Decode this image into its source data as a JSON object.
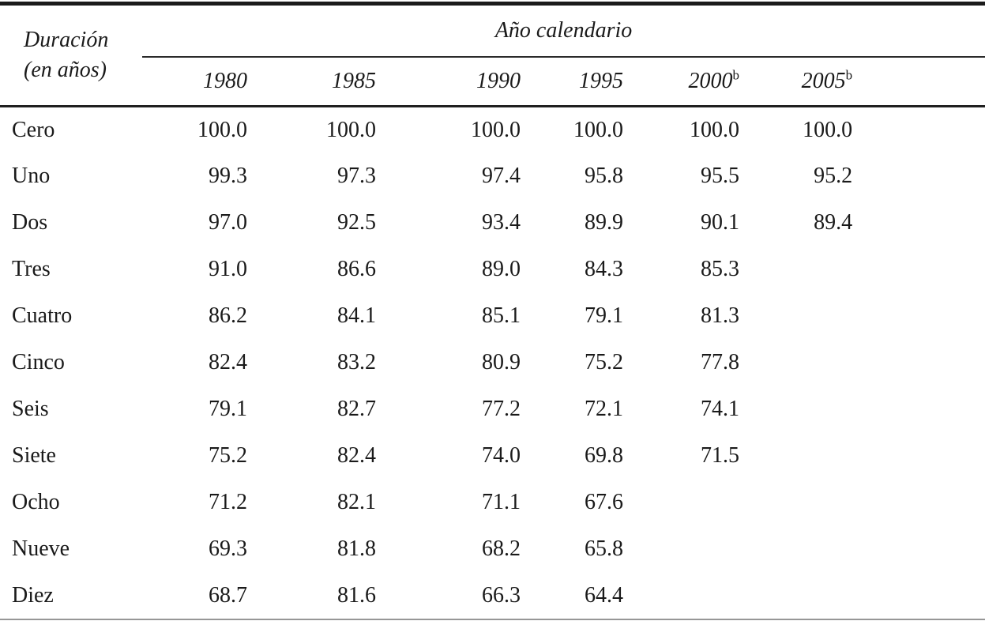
{
  "table": {
    "stub_header": {
      "line1": "Duración",
      "line2": "(en años)"
    },
    "spanner": "Año calendario",
    "years": [
      {
        "label": "1980",
        "sup": ""
      },
      {
        "label": "1985",
        "sup": ""
      },
      {
        "label": "1990",
        "sup": ""
      },
      {
        "label": "1995",
        "sup": ""
      },
      {
        "label": "2000",
        "sup": "b"
      },
      {
        "label": "2005",
        "sup": "b"
      }
    ],
    "rows": [
      {
        "label": "Cero",
        "values": [
          "100.0",
          "100.0",
          "100.0",
          "100.0",
          "100.0",
          "100.0"
        ]
      },
      {
        "label": "Uno",
        "values": [
          "99.3",
          "97.3",
          "97.4",
          "95.8",
          "95.5",
          "95.2"
        ]
      },
      {
        "label": "Dos",
        "values": [
          "97.0",
          "92.5",
          "93.4",
          "89.9",
          "90.1",
          "89.4"
        ]
      },
      {
        "label": "Tres",
        "values": [
          "91.0",
          "86.6",
          "89.0",
          "84.3",
          "85.3",
          ""
        ]
      },
      {
        "label": "Cuatro",
        "values": [
          "86.2",
          "84.1",
          "85.1",
          "79.1",
          "81.3",
          ""
        ]
      },
      {
        "label": "Cinco",
        "values": [
          "82.4",
          "83.2",
          "80.9",
          "75.2",
          "77.8",
          ""
        ]
      },
      {
        "label": "Seis",
        "values": [
          "79.1",
          "82.7",
          "77.2",
          "72.1",
          "74.1",
          ""
        ]
      },
      {
        "label": "Siete",
        "values": [
          "75.2",
          "82.4",
          "74.0",
          "69.8",
          "71.5",
          ""
        ]
      },
      {
        "label": "Ocho",
        "values": [
          "71.2",
          "82.1",
          "71.1",
          "67.6",
          "",
          ""
        ]
      },
      {
        "label": "Nueve",
        "values": [
          "69.3",
          "81.8",
          "68.2",
          "65.8",
          "",
          ""
        ]
      },
      {
        "label": "Diez",
        "values": [
          "68.7",
          "81.6",
          "66.3",
          "64.4",
          "",
          ""
        ]
      }
    ]
  },
  "chart_data": {
    "type": "table",
    "title": "",
    "stub_label": "Duración (en años)",
    "column_group_label": "Año calendario",
    "columns": [
      "1980",
      "1985",
      "1990",
      "1995",
      "2000b",
      "2005b"
    ],
    "row_labels": [
      "Cero",
      "Uno",
      "Dos",
      "Tres",
      "Cuatro",
      "Cinco",
      "Seis",
      "Siete",
      "Ocho",
      "Nueve",
      "Diez"
    ],
    "values": [
      [
        100.0,
        100.0,
        100.0,
        100.0,
        100.0,
        100.0
      ],
      [
        99.3,
        97.3,
        97.4,
        95.8,
        95.5,
        95.2
      ],
      [
        97.0,
        92.5,
        93.4,
        89.9,
        90.1,
        89.4
      ],
      [
        91.0,
        86.6,
        89.0,
        84.3,
        85.3,
        null
      ],
      [
        86.2,
        84.1,
        85.1,
        79.1,
        81.3,
        null
      ],
      [
        82.4,
        83.2,
        80.9,
        75.2,
        77.8,
        null
      ],
      [
        79.1,
        82.7,
        77.2,
        72.1,
        74.1,
        null
      ],
      [
        75.2,
        82.4,
        74.0,
        69.8,
        71.5,
        null
      ],
      [
        71.2,
        82.1,
        71.1,
        67.6,
        null,
        null
      ],
      [
        69.3,
        81.8,
        68.2,
        65.8,
        null,
        null
      ],
      [
        68.7,
        81.6,
        66.3,
        64.4,
        null,
        null
      ]
    ],
    "colors": {
      "text": "#1a1a1a",
      "rule_heavy": "#1b1b1b",
      "rule_light": "#979797",
      "background": "#ffffff"
    }
  }
}
